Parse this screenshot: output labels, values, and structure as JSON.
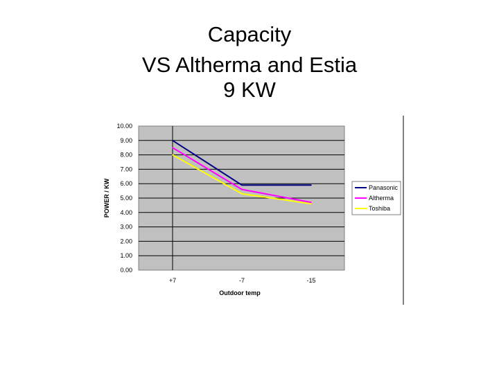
{
  "slide": {
    "title_line1": "Capacity",
    "title_line2": "VS Altherma and Estia",
    "title_line3": "9 KW"
  },
  "chart_data": {
    "type": "line",
    "title": "",
    "xlabel": "Outdoor temp",
    "ylabel": "POWER / KW",
    "categories": [
      "+7",
      "-7",
      "-15"
    ],
    "ylim": [
      0,
      10
    ],
    "yticks": [
      "0.00",
      "1.00",
      "2.00",
      "3.00",
      "4.00",
      "5.00",
      "6.00",
      "7.00",
      "8.00",
      "9.00",
      "10.00"
    ],
    "grid": true,
    "legend": "right",
    "series": [
      {
        "name": "Panasonic",
        "color": "#000080",
        "values": [
          9.0,
          5.9,
          5.9
        ]
      },
      {
        "name": "Altherma",
        "color": "#ff00ff",
        "values": [
          8.5,
          5.6,
          4.7
        ]
      },
      {
        "name": "Toshiba",
        "color": "#ffff00",
        "values": [
          8.0,
          5.3,
          4.6
        ]
      }
    ]
  }
}
